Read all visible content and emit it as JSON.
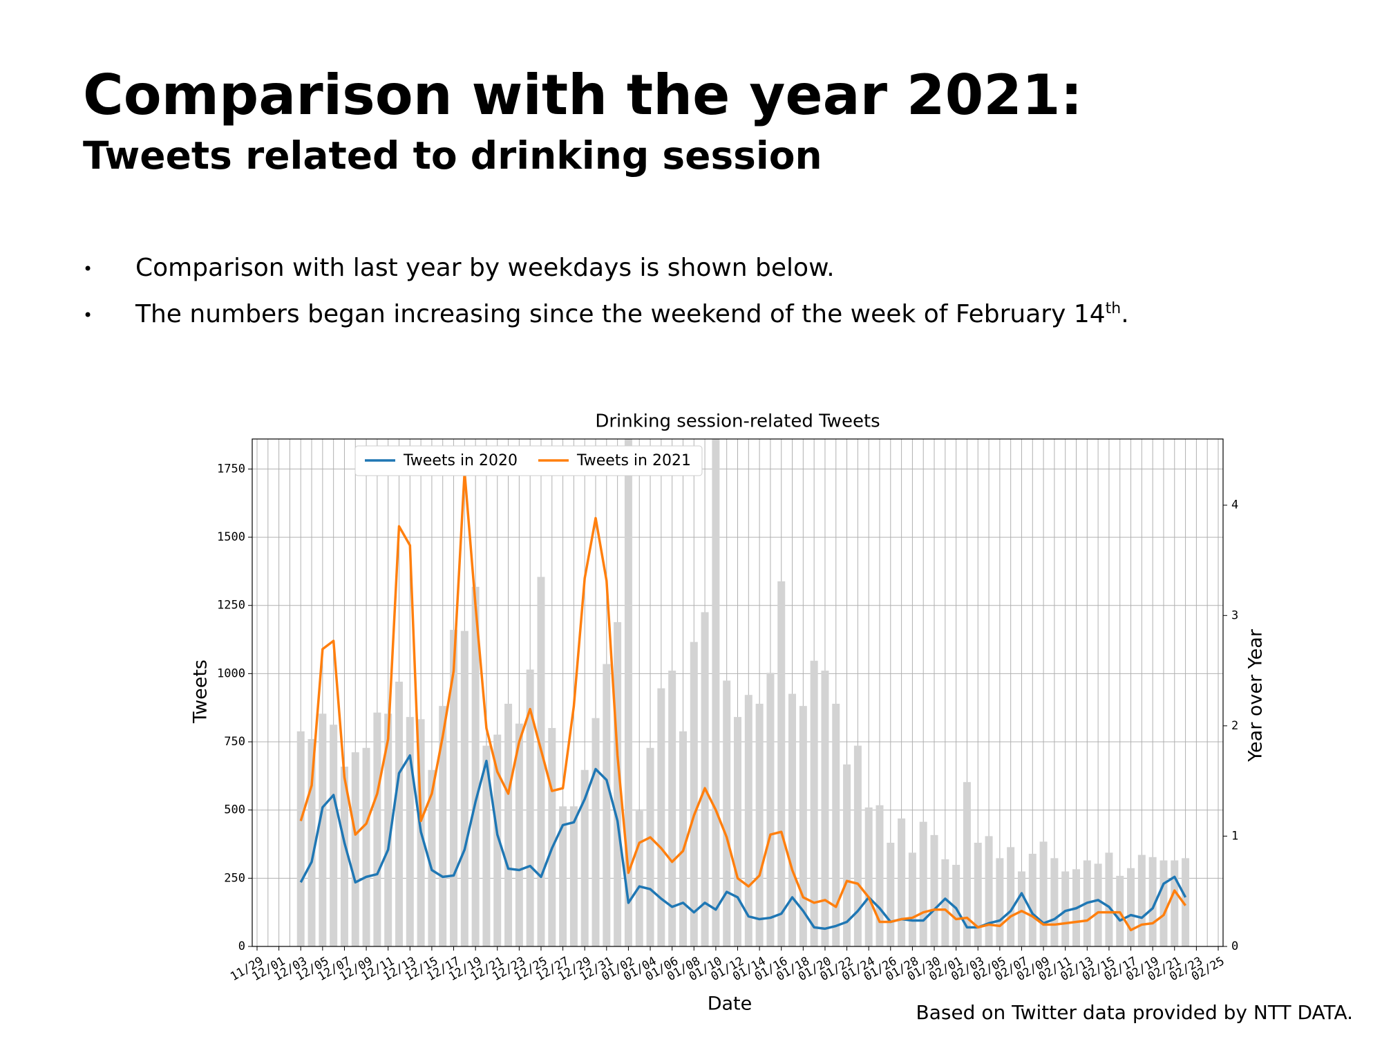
{
  "header": {
    "title": "Comparison with the year 2021:",
    "subtitle": "Tweets related to drinking session"
  },
  "bullets": [
    {
      "text": "Comparison with last year by weekdays is shown below."
    },
    {
      "text": "The numbers began increasing since the weekend of the week of February 14",
      "sup": "th",
      "tail": "."
    }
  ],
  "footnote": "Based on Twitter data provided by NTT DATA.",
  "chart_data": {
    "type": "line",
    "title": "Drinking session-related Tweets",
    "x_label": "Date",
    "y_label": "Tweets",
    "y2_label": "Year over Year",
    "grid": true,
    "categories": [
      "11/29",
      null,
      "12/01",
      null,
      "12/03",
      null,
      "12/05",
      null,
      "12/07",
      null,
      "12/09",
      null,
      "12/11",
      null,
      "12/13",
      null,
      "12/15",
      null,
      "12/17",
      null,
      "12/19",
      null,
      "12/21",
      null,
      "12/23",
      null,
      "12/25",
      null,
      "12/27",
      null,
      "12/29",
      null,
      "12/31",
      null,
      "01/02",
      null,
      "01/04",
      null,
      "01/06",
      null,
      "01/08",
      null,
      "01/10",
      null,
      "01/12",
      null,
      "01/14",
      null,
      "01/16",
      null,
      "01/18",
      null,
      "01/20",
      null,
      "01/22",
      null,
      "01/24",
      null,
      "01/26",
      null,
      "01/28",
      null,
      "01/30",
      null,
      "02/01",
      null,
      "02/03",
      null,
      "02/05",
      null,
      "02/07",
      null,
      "02/09",
      null,
      "02/11",
      null,
      "02/13",
      null,
      "02/15",
      null,
      "02/17",
      null,
      "02/19",
      null,
      "02/21",
      null,
      "02/23",
      null,
      "02/25"
    ],
    "ylim": [
      0,
      1860
    ],
    "yticks": [
      0,
      250,
      500,
      750,
      1000,
      1250,
      1500,
      1750
    ],
    "y2lim": [
      0,
      4.6
    ],
    "y2ticks": [
      0,
      1,
      2,
      3,
      4
    ],
    "series": [
      {
        "type": "bar",
        "axis": "y2",
        "color": "#d3d3d3",
        "values": [
          null,
          null,
          null,
          null,
          1.95,
          1.88,
          2.11,
          2.01,
          1.63,
          1.76,
          1.8,
          2.12,
          2.11,
          2.4,
          2.08,
          2.06,
          1.6,
          2.18,
          2.87,
          2.86,
          3.26,
          1.82,
          1.92,
          2.2,
          2.02,
          2.51,
          3.35,
          1.98,
          1.27,
          1.27,
          1.6,
          2.07,
          2.56,
          2.94,
          4.6,
          1.23,
          1.8,
          2.34,
          2.5,
          1.95,
          2.76,
          3.03,
          4.6,
          2.41,
          2.08,
          2.28,
          2.2,
          2.48,
          3.31,
          2.29,
          2.18,
          2.59,
          2.5,
          2.2,
          1.65,
          1.82,
          1.26,
          1.28,
          0.94,
          1.16,
          0.85,
          1.13,
          1.01,
          0.79,
          0.74,
          1.49,
          0.94,
          1.0,
          0.8,
          0.9,
          0.68,
          0.84,
          0.95,
          0.8,
          0.68,
          0.7,
          0.78,
          0.75,
          0.85,
          0.64,
          0.71,
          0.83,
          0.81,
          0.78,
          0.78,
          0.8,
          null,
          null,
          null
        ]
      },
      {
        "name": "Tweets in 2020",
        "color": "#1f77b4",
        "values": [
          null,
          null,
          null,
          null,
          235,
          310,
          510,
          555,
          380,
          235,
          255,
          265,
          355,
          635,
          700,
          420,
          280,
          255,
          260,
          355,
          530,
          680,
          410,
          285,
          280,
          295,
          255,
          360,
          445,
          455,
          540,
          650,
          610,
          460,
          160,
          220,
          210,
          175,
          145,
          160,
          125,
          160,
          135,
          200,
          180,
          110,
          100,
          105,
          120,
          180,
          130,
          70,
          65,
          75,
          90,
          130,
          180,
          140,
          90,
          100,
          95,
          95,
          135,
          175,
          140,
          70,
          70,
          85,
          95,
          130,
          195,
          120,
          85,
          100,
          130,
          140,
          160,
          170,
          145,
          95,
          115,
          105,
          140,
          230,
          255,
          180,
          null,
          null,
          null
        ]
      },
      {
        "name": "Tweets in 2021",
        "color": "#ff7f0e",
        "values": [
          null,
          null,
          null,
          null,
          460,
          590,
          1090,
          1120,
          620,
          410,
          450,
          560,
          760,
          1540,
          1470,
          460,
          560,
          770,
          1010,
          1740,
          1250,
          800,
          640,
          560,
          750,
          870,
          720,
          570,
          580,
          880,
          1350,
          1570,
          1340,
          700,
          270,
          380,
          400,
          360,
          310,
          350,
          480,
          580,
          500,
          400,
          250,
          220,
          260,
          410,
          420,
          280,
          180,
          160,
          170,
          145,
          240,
          230,
          180,
          90,
          90,
          100,
          105,
          125,
          135,
          135,
          100,
          105,
          70,
          80,
          75,
          110,
          130,
          110,
          80,
          80,
          85,
          90,
          95,
          125,
          125,
          125,
          60,
          80,
          85,
          115,
          205,
          150,
          null,
          null,
          null
        ]
      }
    ]
  }
}
